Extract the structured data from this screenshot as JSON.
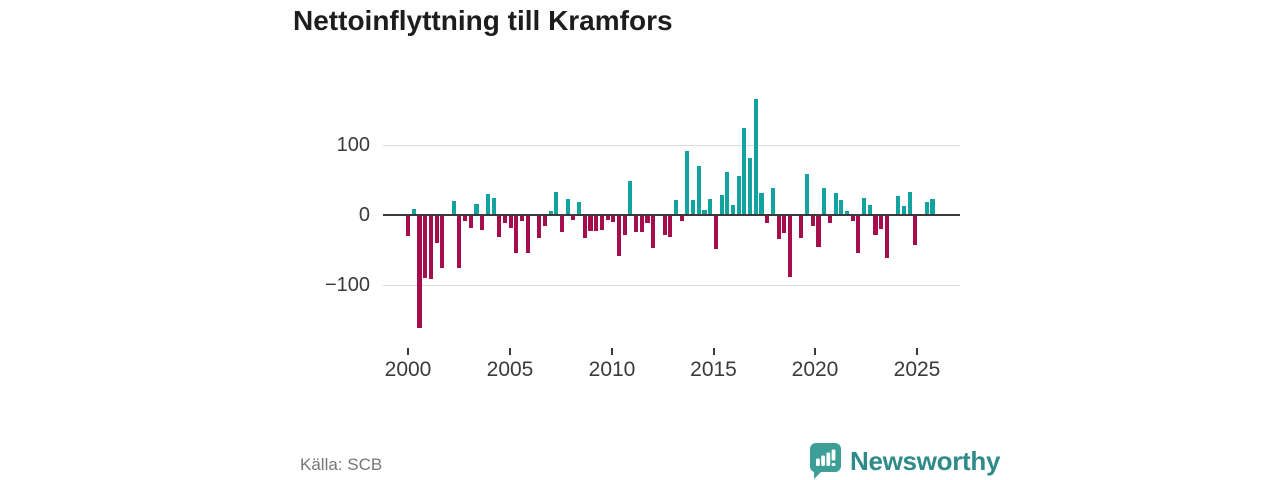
{
  "title": "Nettoinflyttning till Kramfors",
  "source_note": "Källa: SCB",
  "branding": {
    "wordmark": "Newsworthy",
    "icon": "newsworthy-speech-bubble-chart-icon",
    "icon_color": "#3d9e97",
    "wordmark_color": "#2f8a8a"
  },
  "chart_data": {
    "type": "bar",
    "title": "Nettoinflyttning till Kramfors",
    "xlabel": "",
    "ylabel": "",
    "x_tick_labels": [
      "2000",
      "2005",
      "2010",
      "2015",
      "2020",
      "2025"
    ],
    "y_tick_labels": [
      "100",
      "0",
      "−100"
    ],
    "y_tick_values": [
      100,
      0,
      -100
    ],
    "ylim": [
      -175,
      190
    ],
    "x_range_years": [
      2000,
      2026
    ],
    "grid": true,
    "legend": false,
    "positive_color": "#12a2a0",
    "negative_color": "#a50d4d",
    "series": [
      {
        "name": "Nettoinflyttning",
        "values": [
          -30,
          9,
          -161,
          -90,
          -92,
          -40,
          -76,
          0,
          20,
          -76,
          -9,
          -19,
          16,
          -21,
          30,
          25,
          -31,
          -12,
          -19,
          -54,
          -9,
          -54,
          0,
          -33,
          -16,
          6,
          33,
          -24,
          23,
          -7,
          18,
          -33,
          -23,
          -23,
          -21,
          -7,
          -10,
          -58,
          -28,
          49,
          -24,
          -24,
          -11,
          -47,
          0,
          -29,
          -31,
          21,
          -9,
          92,
          21,
          70,
          7,
          23,
          -49,
          28,
          61,
          15,
          56,
          124,
          82,
          166,
          32,
          -11,
          39,
          -34,
          -25,
          -88,
          0,
          -33,
          58,
          -16,
          -45,
          38,
          -12,
          31,
          21,
          6,
          -8,
          -54,
          25,
          15,
          -28,
          -20,
          -62,
          0,
          27,
          13,
          33,
          -43,
          0,
          18,
          23
        ]
      }
    ]
  }
}
